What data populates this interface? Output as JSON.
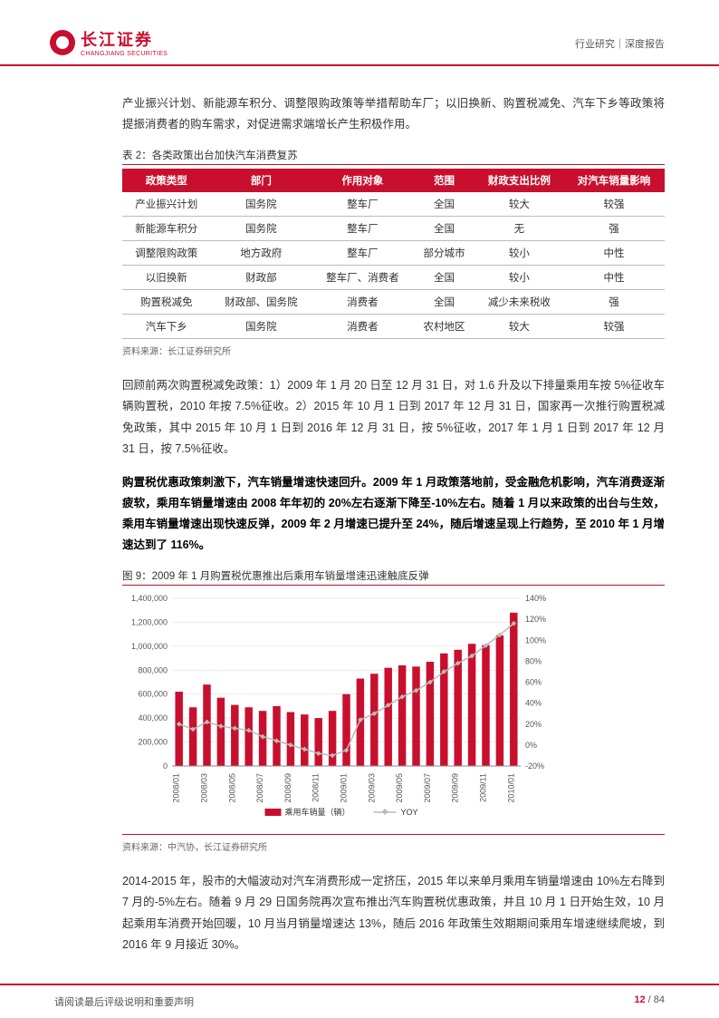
{
  "header": {
    "logo_cn": "长江证券",
    "logo_en": "CHANGJIANG SECURITIES",
    "right": "行业研究｜深度报告"
  },
  "intro_para": "产业振兴计划、新能源车积分、调整限购政策等举措帮助车厂；以旧换新、购置税减免、汽车下乡等政策将提振消费者的购车需求，对促进需求端增长产生积极作用。",
  "table": {
    "title": "表 2：各类政策出台加快汽车消费复苏",
    "headers": [
      "政策类型",
      "部门",
      "作用对象",
      "范围",
      "财政支出比例",
      "对汽车销量影响"
    ],
    "rows": [
      [
        "产业振兴计划",
        "国务院",
        "整车厂",
        "全国",
        "较大",
        "较强"
      ],
      [
        "新能源车积分",
        "国务院",
        "整车厂",
        "全国",
        "无",
        "强"
      ],
      [
        "调整限购政策",
        "地方政府",
        "整车厂",
        "部分城市",
        "较小",
        "中性"
      ],
      [
        "以旧换新",
        "财政部",
        "整车厂、消费者",
        "全国",
        "较小",
        "中性"
      ],
      [
        "购置税减免",
        "财政部、国务院",
        "消费者",
        "全国",
        "减少未来税收",
        "强"
      ],
      [
        "汽车下乡",
        "国务院",
        "消费者",
        "农村地区",
        "较大",
        "较强"
      ]
    ],
    "source": "资料来源：长江证券研究所"
  },
  "para2": "回顾前两次购置税减免政策：1）2009 年 1 月 20 日至 12 月 31 日，对 1.6 升及以下排量乘用车按 5%征收车辆购置税，2010 年按 7.5%征收。2）2015 年 10 月 1 日到 2017 年 12 月 31 日，国家再一次推行购置税减免政策，其中 2015 年 10 月 1 日到 2016 年 12 月 31 日，按 5%征收，2017 年 1 月 1 日到 2017 年 12 月 31 日，按 7.5%征收。",
  "para3": "购置税优惠政策刺激下，汽车销量增速快速回升。2009 年 1 月政策落地前，受金融危机影响，汽车消费逐渐疲软，乘用车销量增速由 2008 年年初的 20%左右逐渐下降至-10%左右。随着 1 月以来政策的出台与生效，乘用车销量增速出现快速反弹，2009 年 2 月增速已提升至 24%，随后增速呈现上行趋势，至 2010 年 1 月增速达到了 116%。",
  "chart": {
    "title": "图 9：2009 年 1 月购置税优惠推出后乘用车销量增速迅速触底反弹",
    "source": "资料来源：中汽协，长江证券研究所",
    "x_labels": [
      "2008/01",
      "2008/03",
      "2008/05",
      "2008/07",
      "2008/09",
      "2008/11",
      "2009/01",
      "2009/03",
      "2009/05",
      "2009/07",
      "2009/09",
      "2009/11",
      "2010/01"
    ],
    "bar_values": [
      620000,
      490000,
      680000,
      570000,
      510000,
      490000,
      460000,
      500000,
      450000,
      430000,
      400000,
      460000,
      600000,
      730000,
      770000,
      820000,
      840000,
      830000,
      870000,
      940000,
      970000,
      1020000,
      1010000,
      1090000,
      1280000
    ],
    "line_values": [
      20,
      15,
      22,
      18,
      16,
      14,
      8,
      4,
      0,
      -4,
      -8,
      -10,
      -5,
      24,
      30,
      38,
      46,
      52,
      60,
      70,
      78,
      85,
      95,
      105,
      116
    ],
    "bar_color": "#c8102e",
    "line_color": "#bbbbbb",
    "y_left": {
      "max": 1400000,
      "step": 200000,
      "labels": [
        "0",
        "200,000",
        "400,000",
        "600,000",
        "800,000",
        "1,000,000",
        "1,200,000",
        "1,400,000"
      ]
    },
    "y_right": {
      "min": -20,
      "max": 140,
      "step": 20,
      "labels": [
        "-20%",
        "0%",
        "20%",
        "40%",
        "60%",
        "80%",
        "100%",
        "120%",
        "140%"
      ]
    },
    "legend": {
      "bar": "乘用车销量（辆）",
      "line": "YOY"
    },
    "grid_color": "#d9d9d9",
    "font_size": 9
  },
  "para4": "2014-2015 年，股市的大幅波动对汽车消费形成一定挤压，2015 年以来单月乘用车销量增速由 10%左右降到 7 月的-5%左右。随着 9 月 29 日国务院再次宣布推出汽车购置税优惠政策，并且 10 月 1 日开始生效，10 月起乘用车消费开始回暖，10 月当月销量增速达 13%，随后 2016 年政策生效期期间乘用车增速继续爬坡，到 2016 年 9 月接近 30%。",
  "footer": {
    "left": "请阅读最后评级说明和重要声明",
    "page_cur": "12",
    "page_sep": " / ",
    "page_total": "84"
  }
}
